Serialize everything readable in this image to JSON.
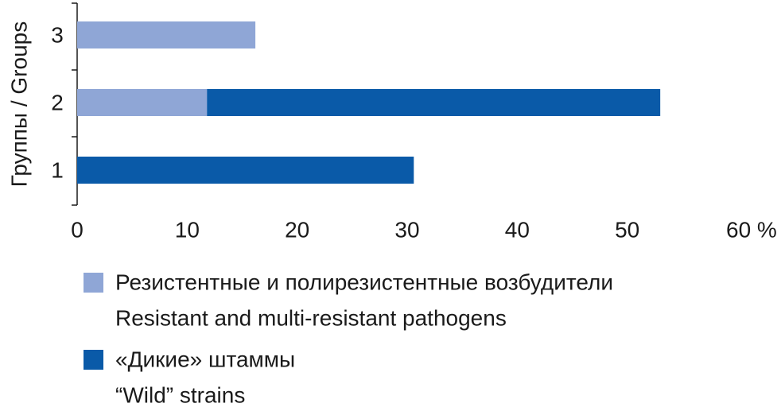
{
  "chart_data": {
    "type": "stacked-barh",
    "ylabel": "Группы / Groups",
    "categories": [
      "1",
      "2",
      "3"
    ],
    "series": [
      {
        "name": "Резистентные и полирезистентные возбудители",
        "name_en": "Resistant and multi-resistant pathogens",
        "color": "#8fa6d6",
        "values": [
          null,
          11.8,
          16.2
        ]
      },
      {
        "name": "«Дикие» штаммы",
        "name_en": "“Wild” strains",
        "color": "#0a5aa8",
        "values": [
          30.6,
          41.2,
          null
        ]
      }
    ],
    "xlim": [
      0,
      60
    ],
    "xticks": [
      0,
      10,
      20,
      30,
      40,
      50,
      {
        "value": 60,
        "label": "60 %"
      }
    ]
  }
}
